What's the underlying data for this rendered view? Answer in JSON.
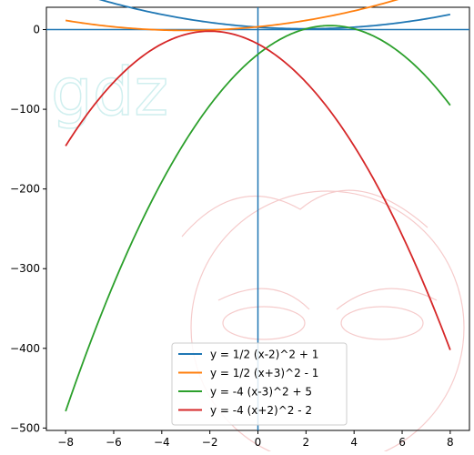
{
  "chart_data": {
    "type": "line",
    "title": "",
    "xlabel": "",
    "ylabel": "",
    "xlim": [
      -8.8,
      8.8
    ],
    "ylim": [
      -503,
      28
    ],
    "xticks": [
      -8,
      -6,
      -4,
      -2,
      0,
      2,
      4,
      6,
      8
    ],
    "xtick_labels": [
      "−8",
      "−6",
      "−4",
      "−2",
      "0",
      "2",
      "4",
      "6",
      "8"
    ],
    "yticks": [
      0,
      -100,
      -200,
      -300,
      -400,
      -500
    ],
    "ytick_labels": [
      "0",
      "−100",
      "−200",
      "−300",
      "−400",
      "−500"
    ],
    "x_domain": [
      -8,
      8
    ],
    "grid": false,
    "axis_lines_through_origin": true,
    "legend_position": "lower-center",
    "series": [
      {
        "name": "y = 1/2 (x-2)^2 + 1",
        "color": "#1f77b4",
        "a": 0.5,
        "h": 2,
        "k": 1,
        "x": [
          -8,
          -4,
          0,
          2,
          4,
          8
        ],
        "y": [
          51,
          19,
          3,
          1,
          3,
          19
        ]
      },
      {
        "name": "y = 1/2 (x+3)^2 - 1",
        "color": "#ff7f0e",
        "a": 0.5,
        "h": -3,
        "k": -1,
        "x": [
          -8,
          -3,
          0,
          4,
          8
        ],
        "y": [
          11.5,
          -1,
          3.5,
          23.5,
          59.5
        ]
      },
      {
        "name": "y = -4 (x-3)^2 + 5",
        "color": "#2ca02c",
        "a": -4,
        "h": 3,
        "k": 5,
        "x": [
          -8,
          -4,
          0,
          3,
          8
        ],
        "y": [
          -479,
          -191,
          -31,
          5,
          -95
        ]
      },
      {
        "name": "y = -4 (x+2)^2 - 2",
        "color": "#d62728",
        "a": -4,
        "h": -2,
        "k": -2,
        "x": [
          -8,
          -2,
          0,
          4,
          8
        ],
        "y": [
          -146,
          -2,
          -18,
          -146,
          -402
        ]
      }
    ]
  },
  "axis_line_color": "#1f77b4",
  "watermark": {
    "text": "gdz",
    "color_teal": "#cceeee",
    "color_red": "#f5c6c6"
  }
}
